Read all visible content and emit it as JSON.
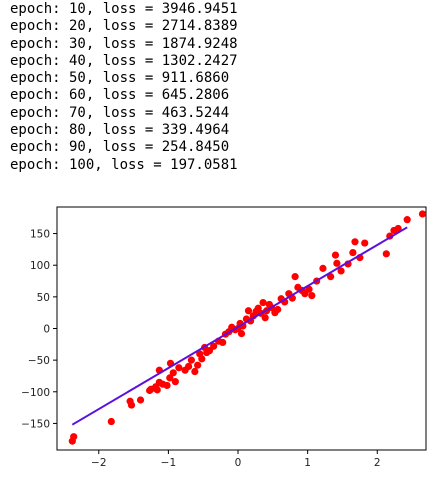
{
  "output_log": [
    "epoch: 10, loss = 3946.9451",
    "epoch: 20, loss = 2714.8389",
    "epoch: 30, loss = 1874.9248",
    "epoch: 40, loss = 1302.2427",
    "epoch: 50, loss = 911.6860",
    "epoch: 60, loss = 645.2806",
    "epoch: 70, loss = 463.5244",
    "epoch: 80, loss = 339.4964",
    "epoch: 90, loss = 254.8450",
    "epoch: 100, loss = 197.0581"
  ],
  "chart_data": {
    "type": "scatter",
    "title": "",
    "xlabel": "",
    "ylabel": "",
    "xlim": [
      -2.6,
      2.7
    ],
    "ylim": [
      -192,
      192
    ],
    "xticks": [
      -2,
      -1,
      0,
      1,
      2
    ],
    "yticks": [
      -150,
      -100,
      -50,
      0,
      50,
      100,
      150
    ],
    "grid": false,
    "legend": "none",
    "colors": {
      "points": "#ff0000",
      "line": "#5b0fe0",
      "axes": "#000000"
    },
    "series": [
      {
        "kind": "scatter",
        "points": [
          [
            -2.38,
            -178
          ],
          [
            -2.36,
            -171
          ],
          [
            -1.82,
            -147
          ],
          [
            -1.55,
            -115
          ],
          [
            -1.53,
            -121
          ],
          [
            -1.4,
            -113
          ],
          [
            -1.27,
            -98
          ],
          [
            -1.25,
            -96
          ],
          [
            -1.18,
            -92
          ],
          [
            -1.16,
            -97
          ],
          [
            -1.13,
            -85
          ],
          [
            -1.13,
            -66
          ],
          [
            -1.08,
            -88
          ],
          [
            -1.02,
            -90
          ],
          [
            -0.98,
            -78
          ],
          [
            -0.97,
            -55
          ],
          [
            -0.93,
            -70
          ],
          [
            -0.9,
            -84
          ],
          [
            -0.85,
            -62
          ],
          [
            -0.76,
            -66
          ],
          [
            -0.71,
            -60
          ],
          [
            -0.67,
            -50
          ],
          [
            -0.62,
            -68
          ],
          [
            -0.58,
            -58
          ],
          [
            -0.55,
            -40
          ],
          [
            -0.52,
            -48
          ],
          [
            -0.48,
            -30
          ],
          [
            -0.45,
            -38
          ],
          [
            -0.41,
            -35
          ],
          [
            -0.35,
            -28
          ],
          [
            -0.28,
            -20
          ],
          [
            -0.22,
            -22
          ],
          [
            -0.18,
            -9
          ],
          [
            -0.13,
            -5
          ],
          [
            -0.09,
            2
          ],
          [
            -0.04,
            -2
          ],
          [
            0.0,
            0
          ],
          [
            0.03,
            8
          ],
          [
            0.05,
            -8
          ],
          [
            0.07,
            4
          ],
          [
            0.12,
            15
          ],
          [
            0.15,
            28
          ],
          [
            0.18,
            12
          ],
          [
            0.22,
            20
          ],
          [
            0.26,
            27
          ],
          [
            0.29,
            32
          ],
          [
            0.33,
            24
          ],
          [
            0.36,
            41
          ],
          [
            0.39,
            17
          ],
          [
            0.41,
            28
          ],
          [
            0.45,
            38
          ],
          [
            0.48,
            33
          ],
          [
            0.53,
            25
          ],
          [
            0.57,
            30
          ],
          [
            0.62,
            47
          ],
          [
            0.67,
            42
          ],
          [
            0.73,
            55
          ],
          [
            0.78,
            48
          ],
          [
            0.82,
            82
          ],
          [
            0.86,
            65
          ],
          [
            0.92,
            60
          ],
          [
            0.96,
            55
          ],
          [
            1.02,
            62
          ],
          [
            1.06,
            52
          ],
          [
            1.13,
            75
          ],
          [
            1.22,
            95
          ],
          [
            1.33,
            82
          ],
          [
            1.4,
            116
          ],
          [
            1.42,
            103
          ],
          [
            1.48,
            91
          ],
          [
            1.58,
            102
          ],
          [
            1.65,
            120
          ],
          [
            1.68,
            137
          ],
          [
            1.75,
            112
          ],
          [
            1.82,
            135
          ],
          [
            2.13,
            118
          ],
          [
            2.18,
            146
          ],
          [
            2.24,
            155
          ],
          [
            2.3,
            158
          ],
          [
            2.43,
            172
          ],
          [
            2.65,
            181
          ]
        ]
      },
      {
        "kind": "line",
        "points": [
          [
            -2.38,
            -152
          ],
          [
            2.43,
            160
          ]
        ]
      }
    ]
  }
}
